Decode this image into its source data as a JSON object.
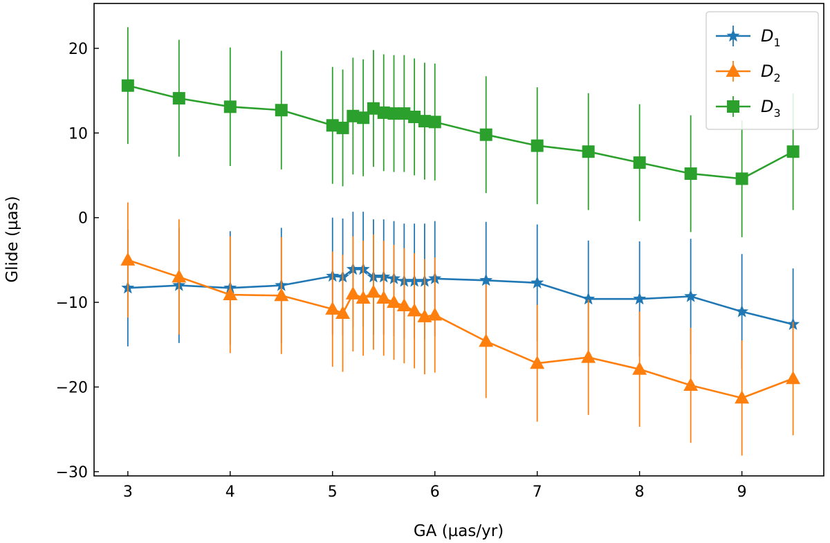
{
  "chart_data": {
    "type": "line",
    "title": "",
    "xlabel": "GA (µas/yr)",
    "ylabel": "Glide (µas)",
    "xlim": [
      2.67,
      9.8
    ],
    "ylim": [
      -30.5,
      25.3
    ],
    "xticks": [
      3,
      4,
      5,
      6,
      7,
      8,
      9
    ],
    "xtick_labels": [
      "3",
      "4",
      "5",
      "6",
      "7",
      "8",
      "9"
    ],
    "yticks": [
      -30,
      -20,
      -10,
      0,
      10,
      20
    ],
    "ytick_labels": [
      "−30",
      "−20",
      "−10",
      "0",
      "10",
      "20"
    ],
    "legend_position": "top-right",
    "x": [
      3.0,
      3.5,
      4.0,
      4.5,
      5.0,
      5.1,
      5.2,
      5.3,
      5.4,
      5.5,
      5.6,
      5.7,
      5.8,
      5.9,
      6.0,
      6.5,
      7.0,
      7.5,
      8.0,
      8.5,
      9.0,
      9.5
    ],
    "series": [
      {
        "name": "D",
        "subscript": "1",
        "marker": "star",
        "color": "#1f77b4",
        "values": [
          -8.3,
          -8.0,
          -8.3,
          -8.0,
          -6.9,
          -7.0,
          -6.1,
          -6.1,
          -7.0,
          -7.0,
          -7.2,
          -7.5,
          -7.5,
          -7.5,
          -7.2,
          -7.4,
          -7.7,
          -9.6,
          -9.6,
          -9.3,
          -11.1,
          -12.6
        ],
        "errors": [
          6.9,
          6.8,
          6.7,
          6.8,
          6.9,
          6.9,
          6.8,
          6.8,
          6.8,
          6.8,
          6.8,
          6.8,
          6.8,
          6.8,
          6.8,
          6.9,
          6.9,
          6.9,
          6.8,
          6.8,
          6.8,
          6.6
        ]
      },
      {
        "name": "D",
        "subscript": "2",
        "marker": "triangle",
        "color": "#ff7f0e",
        "values": [
          -5.0,
          -7.0,
          -9.1,
          -9.2,
          -10.8,
          -11.3,
          -9.0,
          -9.5,
          -8.8,
          -9.5,
          -10.0,
          -10.4,
          -11.0,
          -11.7,
          -11.5,
          -14.6,
          -17.2,
          -16.5,
          -17.9,
          -19.8,
          -21.3,
          -19.0
        ],
        "errors": [
          6.8,
          6.8,
          6.9,
          6.9,
          6.8,
          6.9,
          6.8,
          6.8,
          6.8,
          6.8,
          6.8,
          6.8,
          6.8,
          6.8,
          6.8,
          6.7,
          6.9,
          6.8,
          6.8,
          6.8,
          6.8,
          6.7
        ]
      },
      {
        "name": "D",
        "subscript": "3",
        "marker": "square",
        "color": "#2ca02c",
        "values": [
          15.6,
          14.1,
          13.1,
          12.7,
          10.9,
          10.6,
          12.0,
          11.8,
          12.9,
          12.4,
          12.3,
          12.3,
          11.9,
          11.4,
          11.3,
          9.8,
          8.5,
          7.8,
          6.5,
          5.2,
          4.6,
          7.8
        ],
        "errors": [
          6.9,
          6.9,
          7.0,
          7.0,
          6.9,
          6.9,
          6.9,
          6.9,
          6.9,
          6.9,
          6.9,
          6.9,
          6.9,
          6.9,
          6.9,
          6.9,
          6.9,
          6.9,
          6.9,
          6.9,
          6.9,
          6.9
        ]
      }
    ]
  }
}
